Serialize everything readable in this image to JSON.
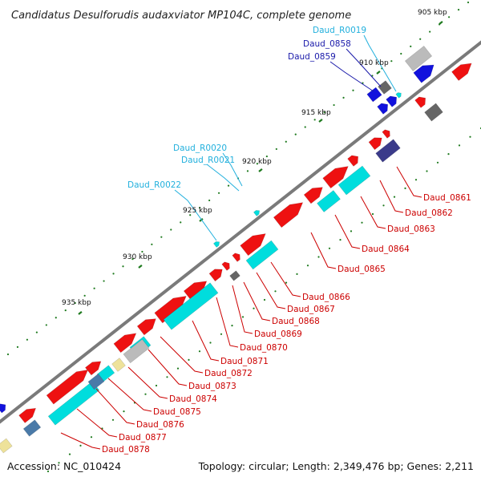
{
  "title": "Candidatus Desulforudis audaxviator MP104C, complete genome",
  "footer": {
    "accession": "Accession: NC_010424",
    "topology": "Topology: circular; Length: 2,349,476 bp; Genes: 2,211"
  },
  "colors": {
    "backbone": "#7a7a7a",
    "tick": "#1e7a1e",
    "gene_forward": "#ee1111",
    "gene_cds": "#00dddd",
    "gene_blue": "#1111dd",
    "gene_navy": "#3b3b8a",
    "gene_steel": "#4a7aa8",
    "gene_gray": "#bbbbbb",
    "gene_dark": "#666666",
    "gene_khaki": "#eee29a",
    "label_red": "#cc0000",
    "label_blue": "#1a1aaa",
    "label_cyan": "#22b0dd"
  },
  "ticks": [
    {
      "label": "910 kbp"
    },
    {
      "label": "915 kbp"
    },
    {
      "label": "920 kbp"
    },
    {
      "label": "925 kbp"
    },
    {
      "label": "930 kbp"
    },
    {
      "label": "935 kbp"
    },
    {
      "label": "905 kbp"
    }
  ],
  "labels_cyan": [
    {
      "text": "Daud_R0019"
    },
    {
      "text": "Daud_R0020"
    },
    {
      "text": "Daud_R0021"
    },
    {
      "text": "Daud_R0022"
    }
  ],
  "labels_blue": [
    {
      "text": "Daud_0858"
    },
    {
      "text": "Daud_0859"
    }
  ],
  "labels_red": [
    {
      "text": "Daud_0861"
    },
    {
      "text": "Daud_0862"
    },
    {
      "text": "Daud_0863"
    },
    {
      "text": "Daud_0864"
    },
    {
      "text": "Daud_0865"
    },
    {
      "text": "Daud_0866"
    },
    {
      "text": "Daud_0867"
    },
    {
      "text": "Daud_0868"
    },
    {
      "text": "Daud_0869"
    },
    {
      "text": "Daud_0870"
    },
    {
      "text": "Daud_0871"
    },
    {
      "text": "Daud_0872"
    },
    {
      "text": "Daud_0873"
    },
    {
      "text": "Daud_0874"
    },
    {
      "text": "Daud_0875"
    },
    {
      "text": "Daud_0876"
    },
    {
      "text": "Daud_0877"
    },
    {
      "text": "Daud_0878"
    }
  ]
}
